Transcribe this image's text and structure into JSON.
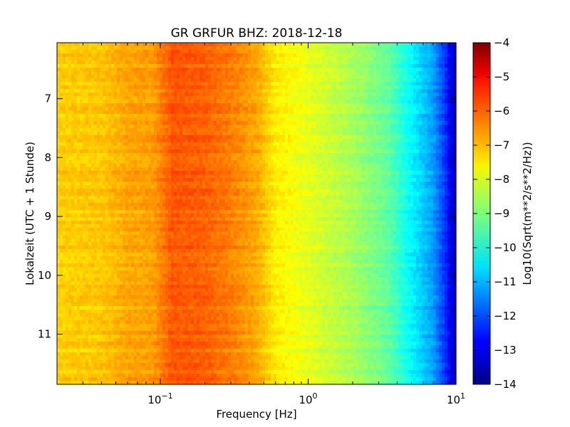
{
  "chart_data": {
    "type": "heatmap",
    "title": "GR GRFUR BHZ: 2018-12-18",
    "xlabel": "Frequency [Hz]",
    "ylabel": "Lokalzeit (UTC + 1 Stunde)",
    "xscale": "log",
    "xlim": [
      0.02,
      10
    ],
    "ylim": [
      6.05,
      11.85
    ],
    "y_inverted": true,
    "x_ticks": [
      {
        "value": 0.1,
        "base": "10",
        "exp": "−1"
      },
      {
        "value": 1,
        "base": "10",
        "exp": "0"
      },
      {
        "value": 10,
        "base": "10",
        "exp": "1"
      }
    ],
    "y_ticks": [
      "7",
      "8",
      "9",
      "10",
      "11"
    ],
    "y_tick_values": [
      7,
      8,
      9,
      10,
      11
    ],
    "colormap": "jet",
    "colorbar": {
      "label": "Log10(Sqrt(m**2/s**2/Hz))",
      "range": [
        -14,
        -4
      ],
      "ticks": [
        "−4",
        "−5",
        "−6",
        "−7",
        "−8",
        "−9",
        "−10",
        "−11",
        "−12",
        "−13",
        "−14"
      ],
      "tick_values": [
        -4,
        -5,
        -6,
        -7,
        -8,
        -9,
        -10,
        -11,
        -12,
        -13,
        -14
      ]
    },
    "spectrum_profile": [
      {
        "freq": 0.02,
        "value": -7.3
      },
      {
        "freq": 0.04,
        "value": -7.2
      },
      {
        "freq": 0.06,
        "value": -6.9
      },
      {
        "freq": 0.09,
        "value": -6.8
      },
      {
        "freq": 0.12,
        "value": -6.1
      },
      {
        "freq": 0.2,
        "value": -6.2
      },
      {
        "freq": 0.3,
        "value": -6.5
      },
      {
        "freq": 0.45,
        "value": -6.9
      },
      {
        "freq": 0.6,
        "value": -7.6
      },
      {
        "freq": 1.0,
        "value": -8.0
      },
      {
        "freq": 2.0,
        "value": -8.6
      },
      {
        "freq": 3.5,
        "value": -9.3
      },
      {
        "freq": 5.0,
        "value": -10.3
      },
      {
        "freq": 7.0,
        "value": -11.2
      },
      {
        "freq": 8.5,
        "value": -12.3
      },
      {
        "freq": 10.0,
        "value": -13.6
      }
    ]
  }
}
